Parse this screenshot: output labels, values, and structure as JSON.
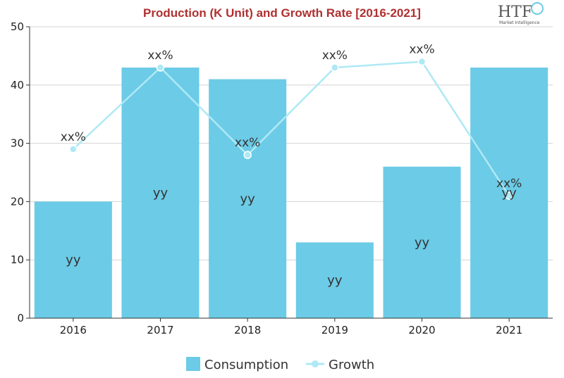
{
  "chart_data": {
    "type": "bar",
    "title": "Production (K Unit) and Growth Rate [2016-2021]",
    "categories": [
      "2016",
      "2017",
      "2018",
      "2019",
      "2020",
      "2021"
    ],
    "series": [
      {
        "name": "Consumption",
        "type": "bar",
        "values": [
          20,
          43,
          41,
          13,
          26,
          43
        ],
        "labels": [
          "yy",
          "yy",
          "yy",
          "yy",
          "yy",
          "yy"
        ],
        "color": "#6ccbe6"
      },
      {
        "name": "Growth",
        "type": "line",
        "values": [
          29,
          43,
          28,
          43,
          44,
          21
        ],
        "labels": [
          "xx%",
          "xx%",
          "xx%",
          "xx%",
          "xx%",
          "xx%"
        ],
        "color": "#aee9f5"
      }
    ],
    "ylim": [
      0,
      50
    ],
    "yticks": [
      0,
      10,
      20,
      30,
      40,
      50
    ],
    "xlabel": "",
    "ylabel": "",
    "grid": true,
    "legend_position": "bottom-center"
  },
  "logo": {
    "text": "HTF",
    "subtext": "Market Intelligence"
  }
}
